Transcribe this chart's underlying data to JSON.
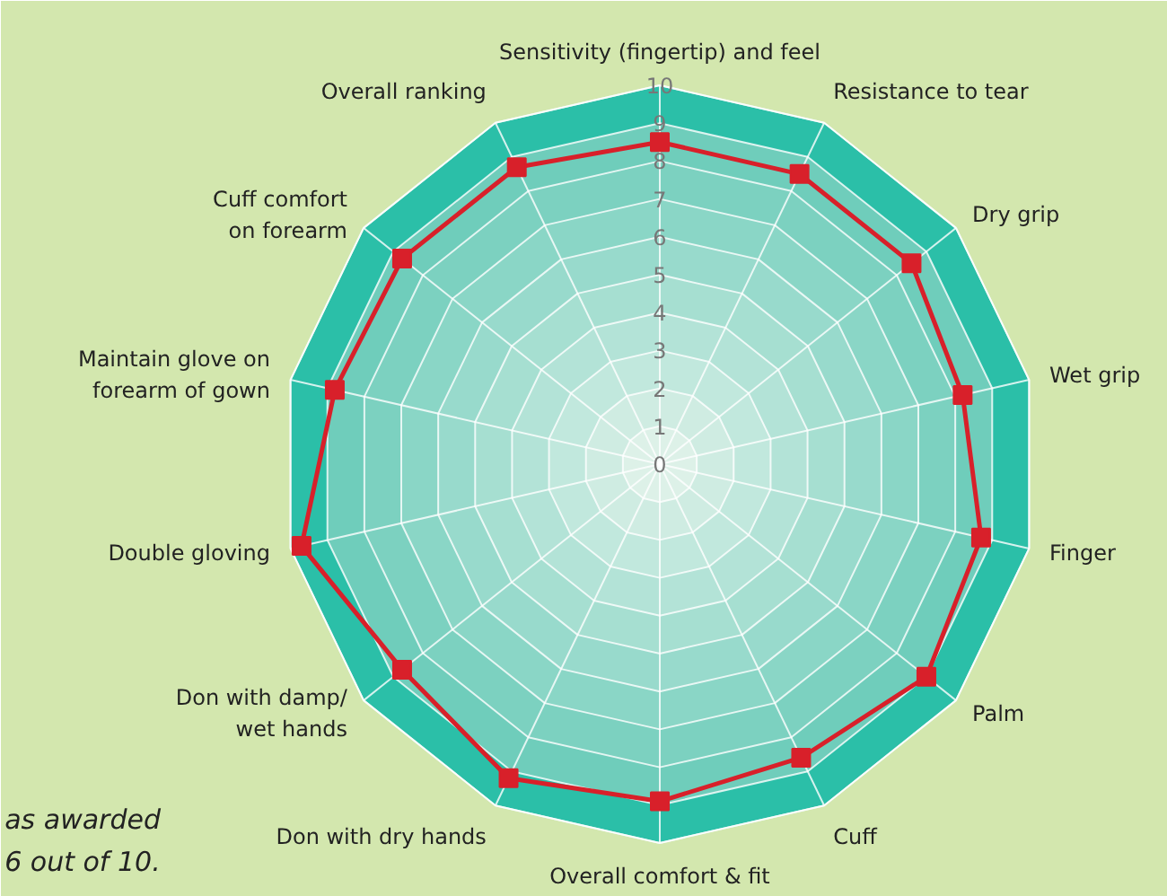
{
  "chart_data": {
    "type": "radar",
    "categories": [
      "Sensitivity (fingertip) and feel",
      "Resistance to tear",
      "Dry grip",
      "Wet grip",
      "Finger",
      "Palm",
      "Cuff",
      "Overall comfort & fit",
      "Don with dry hands",
      "Don with damp/\nwet hands",
      "Double gloving",
      "Maintain glove on\nforearm of gown",
      "Cuff comfort\non forearm",
      "Overall ranking"
    ],
    "series": [
      {
        "color": "#d8202a",
        "values": [
          8.5,
          8.5,
          8.5,
          8.2,
          8.7,
          9.0,
          8.6,
          8.9,
          9.2,
          8.7,
          9.7,
          8.8,
          8.7,
          8.7
        ]
      }
    ],
    "ylim": [
      0,
      10
    ],
    "yticks": [
      0,
      1,
      2,
      3,
      4,
      5,
      6,
      7,
      8,
      9,
      10
    ],
    "marker": "square",
    "line_style": "solid",
    "grid": true,
    "annotations": [
      "as awarded\n6 out of 10."
    ]
  }
}
